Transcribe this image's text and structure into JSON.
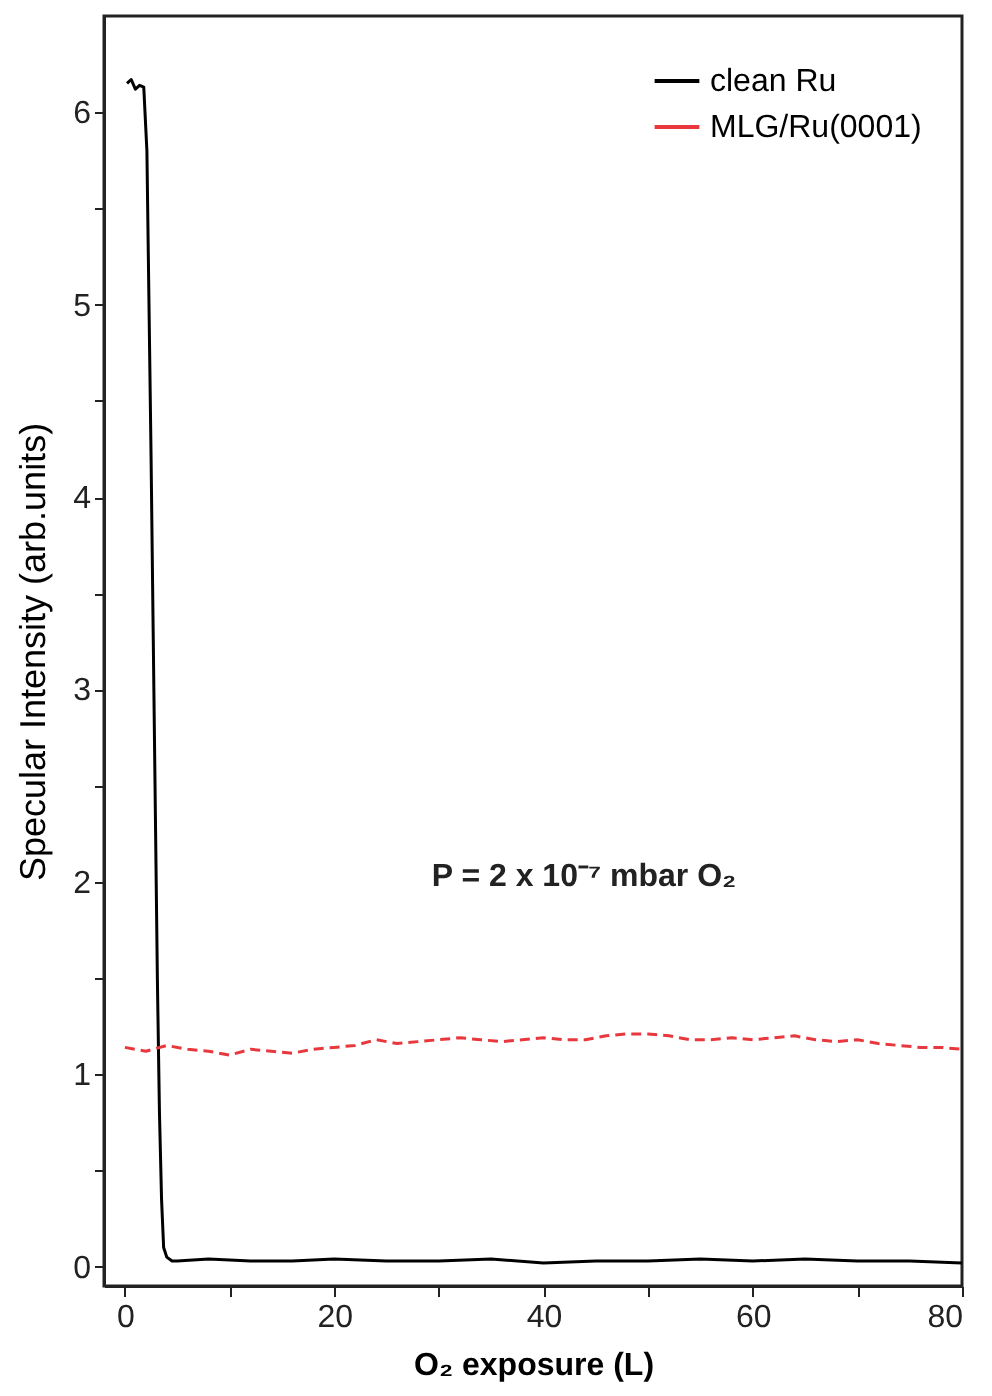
{
  "chart_data": {
    "type": "line",
    "xlabel": "O₂ exposure (L)",
    "ylabel": "Specular Intensity (arb.units)",
    "xlim": [
      -2,
      80
    ],
    "ylim": [
      -0.1,
      6.5
    ],
    "xticks": [
      0,
      {
        "value": 10,
        "label": null
      },
      20,
      {
        "value": 30,
        "label": null
      },
      40,
      {
        "value": 50,
        "label": null
      },
      60,
      {
        "value": 70,
        "label": null
      },
      80
    ],
    "yticks": [
      0,
      {
        "value": 0.5,
        "label": null
      },
      1,
      {
        "value": 1.5,
        "label": null
      },
      2,
      {
        "value": 2.5,
        "label": null
      },
      3,
      {
        "value": 3.5,
        "label": null
      },
      4,
      {
        "value": 4.5,
        "label": null
      },
      5,
      {
        "value": 5.5,
        "label": null
      },
      6
    ],
    "grid": false,
    "legend": "top right",
    "annotations": [
      "P = 2 x 10⁻⁷ mbar  O₂"
    ],
    "series": [
      {
        "name": "clean Ru",
        "color": "#000000",
        "line_style": "solid",
        "x": [
          0.2,
          0.6,
          1.0,
          1.4,
          1.8,
          2.1,
          2.3,
          2.5,
          2.7,
          2.9,
          3.1,
          3.3,
          3.5,
          3.7,
          4.0,
          4.5,
          5,
          8,
          12,
          16,
          20,
          25,
          30,
          35,
          40,
          45,
          50,
          55,
          60,
          65,
          70,
          75,
          80
        ],
        "values": [
          6.15,
          6.17,
          6.12,
          6.14,
          6.13,
          5.8,
          5.0,
          4.2,
          3.3,
          2.4,
          1.5,
          0.8,
          0.35,
          0.1,
          0.05,
          0.03,
          0.03,
          0.04,
          0.03,
          0.03,
          0.04,
          0.03,
          0.03,
          0.04,
          0.02,
          0.03,
          0.03,
          0.04,
          0.03,
          0.04,
          0.03,
          0.03,
          0.02
        ]
      },
      {
        "name": "MLG/Ru(0001)",
        "color": "#e8383d",
        "line_style": "dashed",
        "x": [
          0,
          2,
          4,
          6,
          8,
          10,
          12,
          14,
          16,
          18,
          20,
          22,
          24,
          26,
          28,
          30,
          32,
          34,
          36,
          38,
          40,
          42,
          44,
          46,
          48,
          50,
          52,
          54,
          56,
          58,
          60,
          62,
          64,
          66,
          68,
          70,
          72,
          74,
          76,
          78,
          80
        ],
        "values": [
          1.14,
          1.12,
          1.15,
          1.13,
          1.12,
          1.1,
          1.13,
          1.12,
          1.11,
          1.13,
          1.14,
          1.15,
          1.18,
          1.16,
          1.17,
          1.18,
          1.19,
          1.18,
          1.17,
          1.18,
          1.19,
          1.18,
          1.18,
          1.2,
          1.21,
          1.21,
          1.2,
          1.18,
          1.18,
          1.19,
          1.18,
          1.19,
          1.2,
          1.18,
          1.17,
          1.18,
          1.16,
          1.15,
          1.14,
          1.14,
          1.13
        ]
      }
    ]
  }
}
